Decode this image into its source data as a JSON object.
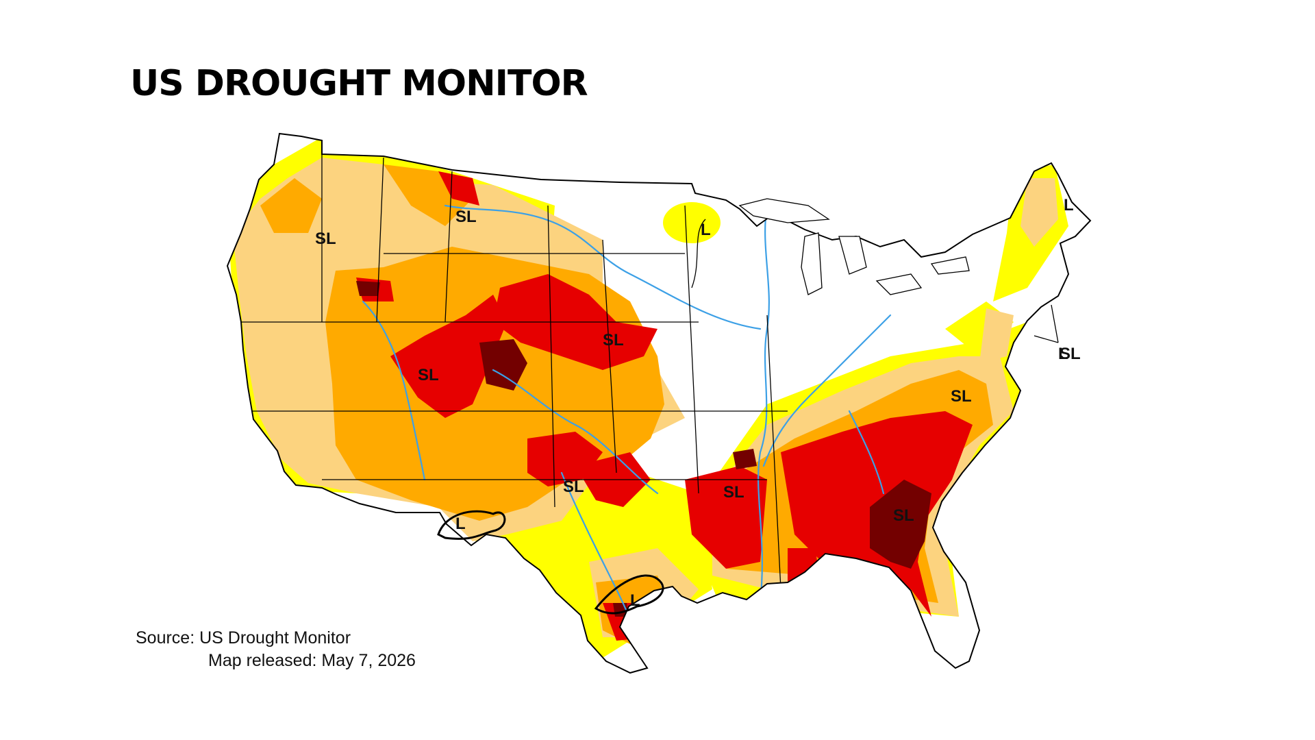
{
  "title": "US DROUGHT MONITOR",
  "source": {
    "line1": "Source: US Drought Monitor",
    "line2": "Map released: May 7, 2026"
  },
  "impact_labels": [
    "SL",
    "SL",
    "SL",
    "SL",
    "SL",
    "SL",
    "SL",
    "SL",
    "SL",
    "L",
    "L",
    "L",
    "L",
    "L"
  ],
  "colors": {
    "background": "#ffffff",
    "none": "#ffffff",
    "D0_abnormally_dry": "#ffff00",
    "D1_moderate": "#fcd37f",
    "D2_severe": "#ffaa00",
    "D3_extreme": "#e60000",
    "D4_exceptional": "#730000",
    "rivers": "#3ca0e6",
    "borders": "#000000"
  }
}
